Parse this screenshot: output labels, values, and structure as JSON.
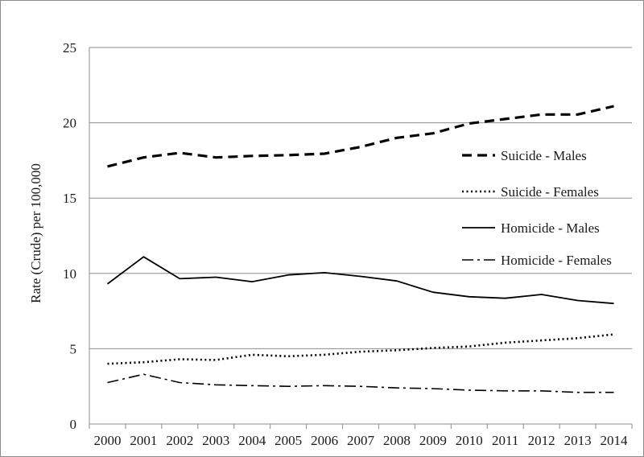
{
  "chart_data": {
    "type": "line",
    "title": "",
    "xlabel": "",
    "ylabel": "Rate (Crude) per 100,000",
    "ylim": [
      0,
      25
    ],
    "yticks": [
      0,
      5,
      10,
      15,
      20,
      25
    ],
    "grid": true,
    "legend_position": "right",
    "categories": [
      "2000",
      "2001",
      "2002",
      "2003",
      "2004",
      "2005",
      "2006",
      "2007",
      "2008",
      "2009",
      "2010",
      "2011",
      "2012",
      "2013",
      "2014"
    ],
    "series": [
      {
        "name": "Suicide - Males",
        "style": "dashed",
        "values": [
          17.1,
          17.7,
          18.0,
          17.7,
          17.8,
          17.85,
          17.95,
          18.4,
          19.0,
          19.3,
          19.95,
          20.25,
          20.55,
          20.55,
          21.1
        ]
      },
      {
        "name": "Suicide - Females",
        "style": "dotted",
        "values": [
          4.0,
          4.1,
          4.3,
          4.25,
          4.6,
          4.5,
          4.6,
          4.8,
          4.9,
          5.05,
          5.15,
          5.4,
          5.55,
          5.7,
          5.95
        ]
      },
      {
        "name": "Homicide - Males",
        "style": "solid",
        "values": [
          9.3,
          11.1,
          9.65,
          9.75,
          9.45,
          9.9,
          10.05,
          9.8,
          9.5,
          8.75,
          8.45,
          8.35,
          8.6,
          8.2,
          8.0
        ]
      },
      {
        "name": "Homicide - Females",
        "style": "dashdot",
        "values": [
          2.75,
          3.3,
          2.75,
          2.6,
          2.55,
          2.5,
          2.55,
          2.5,
          2.4,
          2.35,
          2.25,
          2.2,
          2.2,
          2.1,
          2.1
        ]
      }
    ]
  },
  "colors": {
    "line": "#000000",
    "grid": "#8c8c8c",
    "axis": "#8c8c8c",
    "text": "#1a1a1a"
  }
}
